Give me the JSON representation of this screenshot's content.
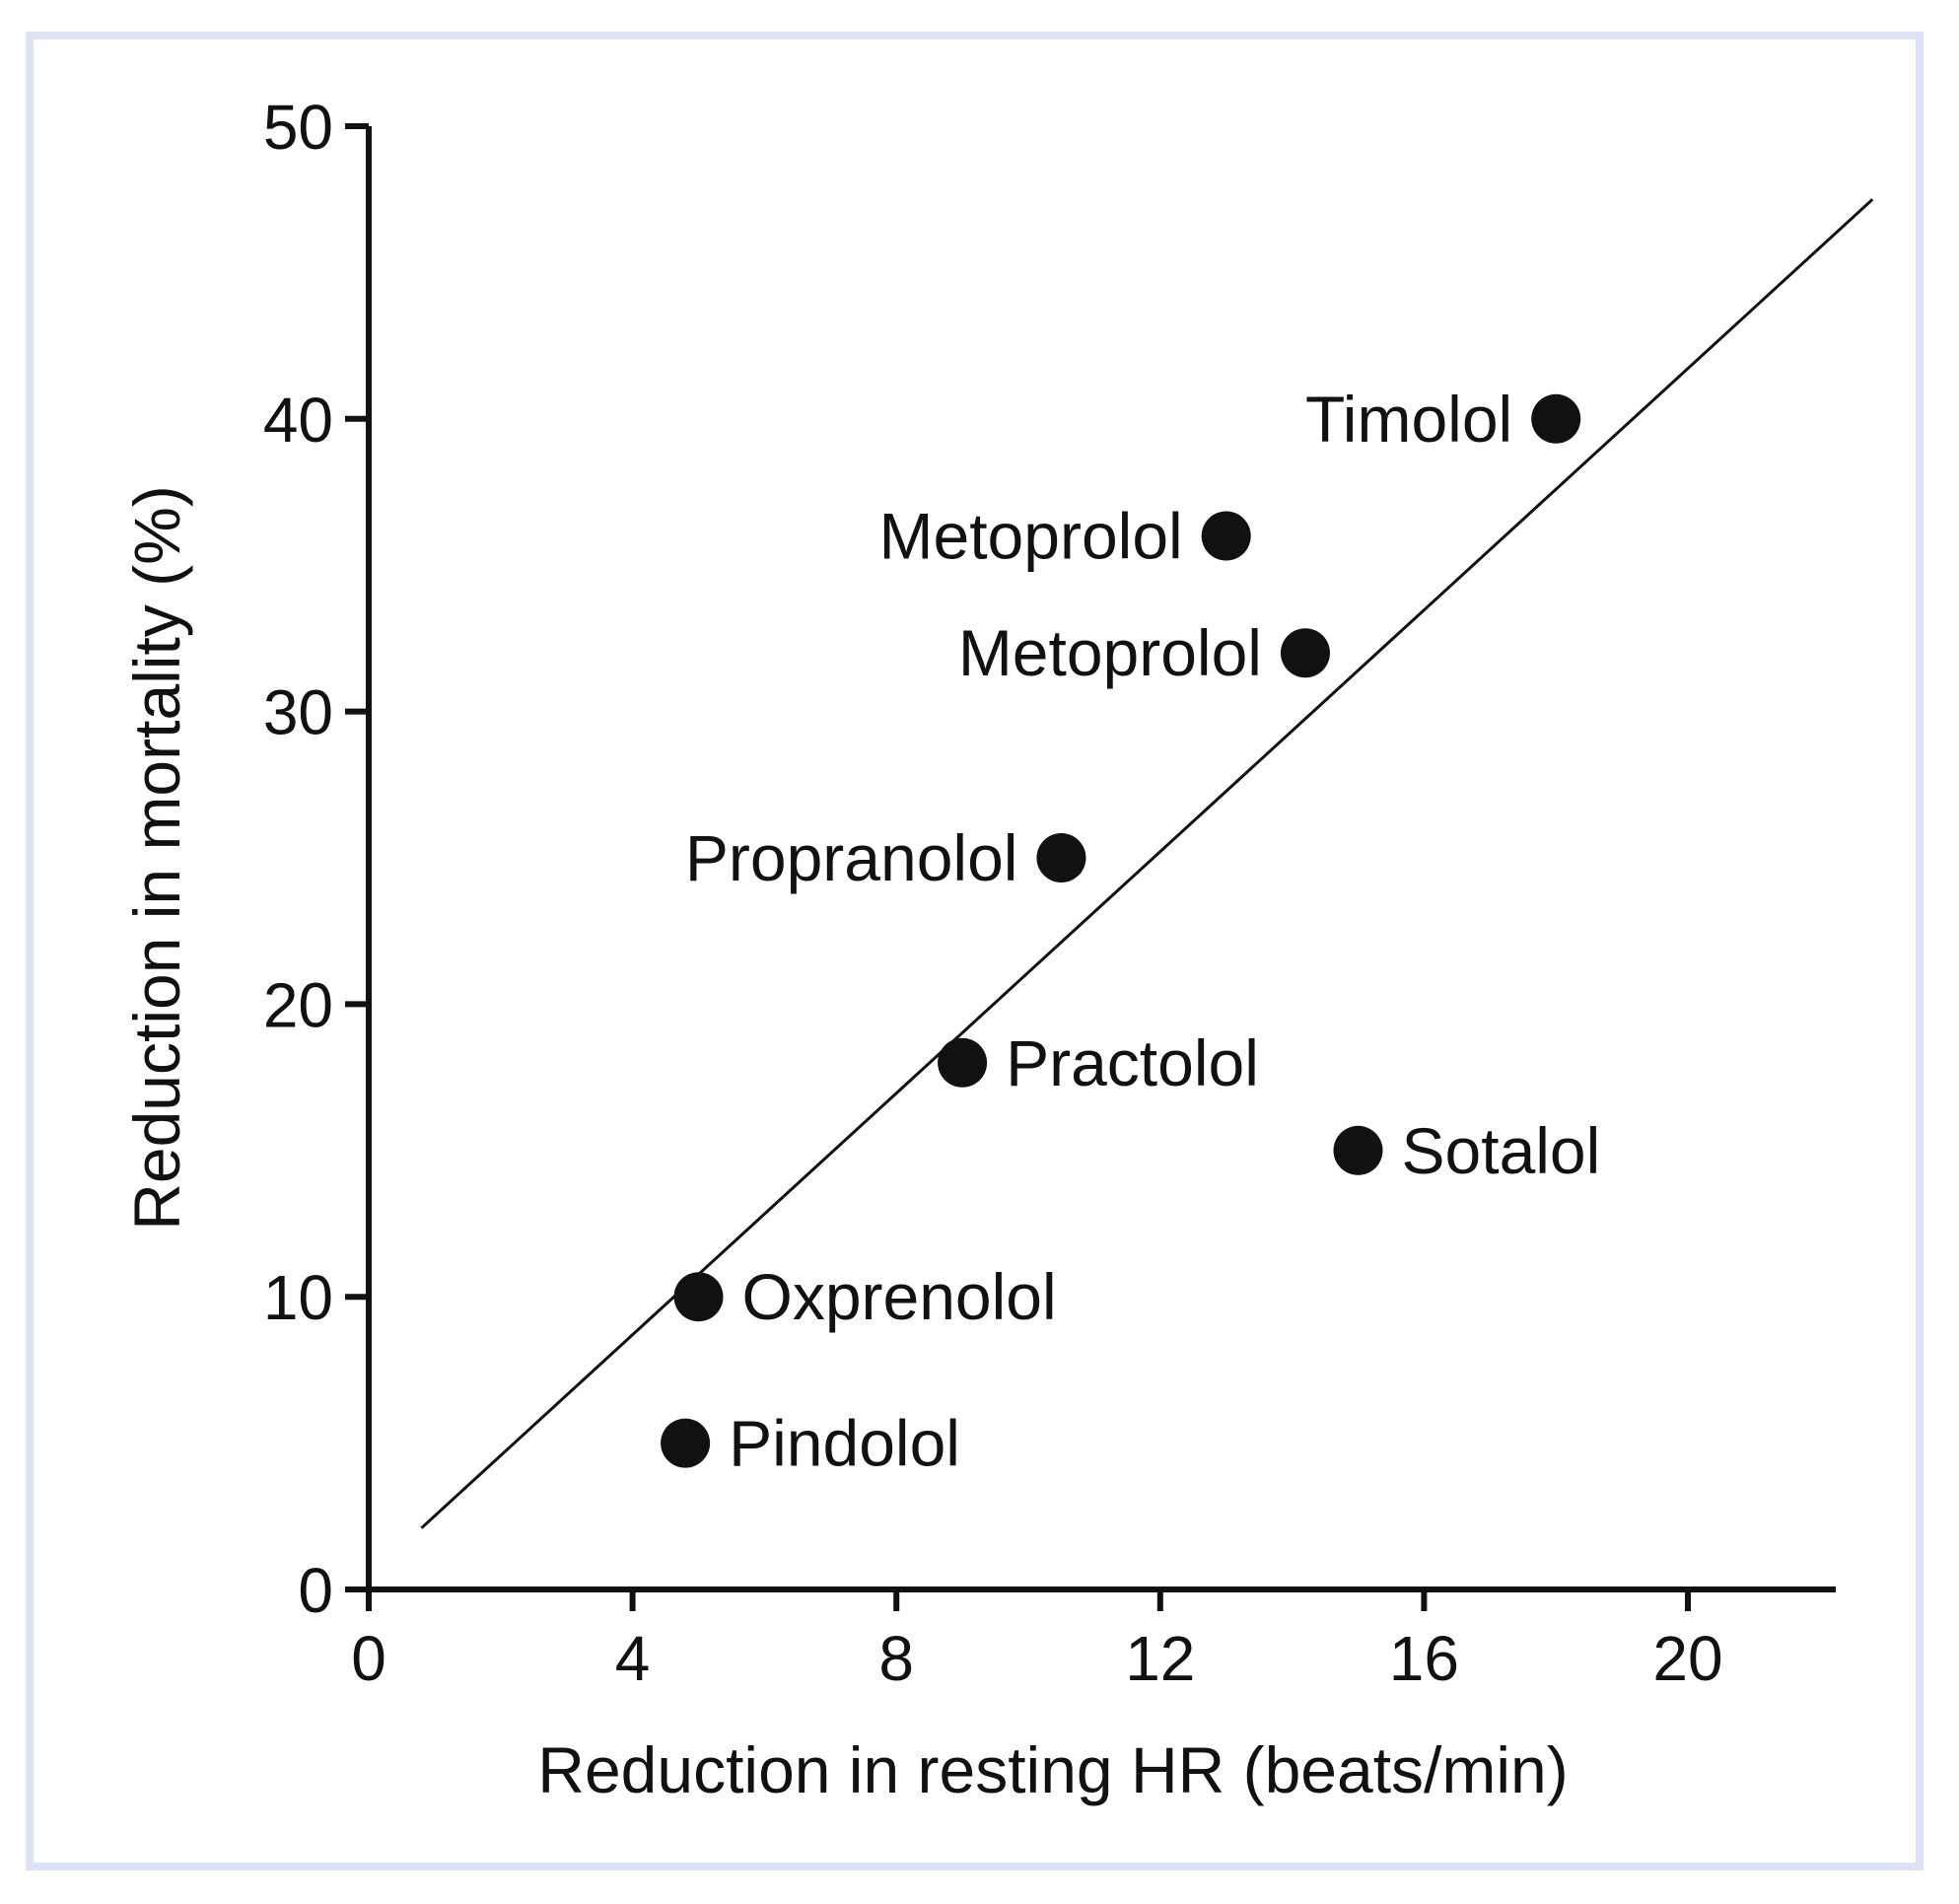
{
  "chart_data": {
    "type": "scatter",
    "title": "",
    "xlabel": "Reduction in resting HR (beats/min)",
    "ylabel": "Reduction in mortality (%)",
    "xlim": [
      0,
      22
    ],
    "ylim": [
      0,
      50
    ],
    "xticks": [
      "0",
      "4",
      "8",
      "12",
      "16",
      "20"
    ],
    "yticks": [
      "0",
      "10",
      "20",
      "30",
      "40",
      "50"
    ],
    "grid": false,
    "legend": "none",
    "points": [
      {
        "label": "Timolol",
        "x": 18.0,
        "y": 40,
        "label_side": "left"
      },
      {
        "label": "Metoprolol",
        "x": 13.0,
        "y": 36,
        "label_side": "left"
      },
      {
        "label": "Metoprolol",
        "x": 14.2,
        "y": 32,
        "label_side": "left"
      },
      {
        "label": "Propranolol",
        "x": 10.5,
        "y": 25,
        "label_side": "left"
      },
      {
        "label": "Practolol",
        "x": 9.0,
        "y": 18,
        "label_side": "right"
      },
      {
        "label": "Sotalol",
        "x": 15.0,
        "y": 15,
        "label_side": "right"
      },
      {
        "label": "Oxprenolol",
        "x": 5.0,
        "y": 10,
        "label_side": "right"
      },
      {
        "label": "Pindolol",
        "x": 4.8,
        "y": 5,
        "label_side": "right"
      }
    ],
    "trendline": {
      "x": [
        0.8,
        22.8
      ],
      "y": [
        2.1,
        47.5
      ]
    },
    "colors": {
      "points": "#111111",
      "axis": "#111111",
      "frame": "#dde2f4"
    }
  }
}
